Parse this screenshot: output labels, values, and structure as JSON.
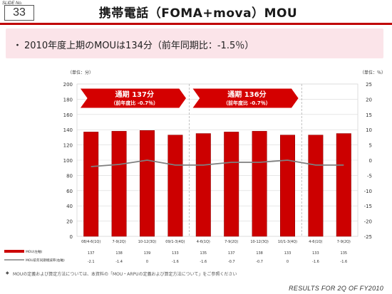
{
  "header": {
    "slide_label": "SLIDE No.",
    "slide_number": "33",
    "title": "携帯電話（FOMA+mova）MOU"
  },
  "summary": {
    "bullet": "・",
    "text": "2010年度上期のMOUは134分（前年同期比：-1.5％）"
  },
  "colors": {
    "accent": "#c00000",
    "bar": "#cc0000",
    "line": "#7f7f7f",
    "callout": "#d40000",
    "summary_bg": "#fbe4e9"
  },
  "chart_data": {
    "type": "bar",
    "left_unit": "（単位：分）",
    "right_unit": "（単位：％）",
    "categories": [
      "08/4-6(1Q)",
      "7-9(2Q)",
      "10-12(3Q)",
      "09/1-3(4Q)",
      "4-6(1Q)",
      "7-9(2Q)",
      "10-12(3Q)",
      "10/1-3(4Q)",
      "4-6(1Q)",
      "7-9(2Q)"
    ],
    "series": [
      {
        "name": "MOU(左軸)",
        "axis": "left",
        "values": [
          137,
          138,
          139,
          133,
          135,
          137,
          138,
          133,
          133,
          135
        ]
      },
      {
        "name": "MOU前年同期増減率(右軸)",
        "axis": "right",
        "values": [
          -2.1,
          -1.4,
          0,
          -1.6,
          -1.6,
          -0.7,
          -0.7,
          0,
          -1.6,
          -1.6
        ]
      }
    ],
    "table_left": {
      "values": [
        "137",
        "138",
        "139",
        "133",
        "135",
        "137",
        "138",
        "133",
        "133",
        "135"
      ]
    },
    "table_right": {
      "values": [
        "-2.1",
        "-1.4",
        "0",
        "-1.6",
        "-1.6",
        "-0.7",
        "-0.7",
        "0",
        "-1.6",
        "-1.6"
      ]
    },
    "yticks_left": [
      "0",
      "20",
      "40",
      "60",
      "80",
      "100",
      "120",
      "140",
      "160",
      "180",
      "200"
    ],
    "yticks_right": [
      "-25",
      "-20",
      "-15",
      "-10",
      "-5",
      "0",
      "5",
      "10",
      "15",
      "20",
      "25"
    ],
    "ylim_left": [
      0,
      200
    ],
    "ylim_right": [
      -25,
      25
    ],
    "grid": true,
    "callouts": [
      {
        "title": "通期 137分",
        "sub": "（前年度比 -0.7％）",
        "from": 0,
        "to": 3
      },
      {
        "title": "通期 136分",
        "sub": "（前年度比 -0.7％）",
        "from": 4,
        "to": 7
      }
    ]
  },
  "footnote": {
    "mark": "◆",
    "text": "MOUの定義および算定方法については、本資料の「MOU・ARPUの定義および算定方法について」をご参照ください"
  },
  "footer": "RESULTS FOR 2Q OF FY2010"
}
